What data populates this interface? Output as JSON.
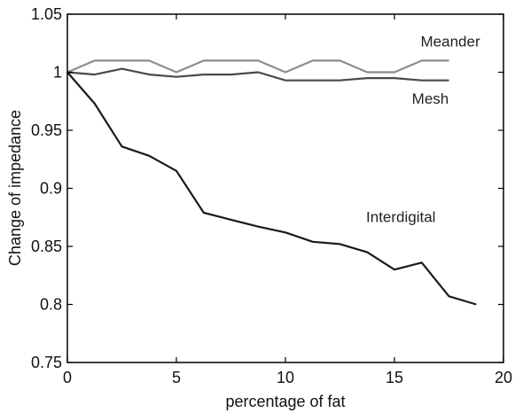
{
  "chart_data": {
    "type": "line",
    "title": "",
    "xlabel": "percentage of fat",
    "ylabel": "Change of impedance",
    "xlim": [
      0,
      20
    ],
    "ylim": [
      0.75,
      1.05
    ],
    "xticks": [
      0,
      5,
      10,
      15,
      20
    ],
    "xtick_labels": [
      "0",
      "5",
      "10",
      "15",
      "20"
    ],
    "yticks": [
      0.75,
      0.8,
      0.85,
      0.9,
      0.95,
      1,
      1.05
    ],
    "ytick_labels": [
      "0.75",
      "0.8",
      "0.85",
      "0.9",
      "0.95",
      "1",
      "1.05"
    ],
    "grid": false,
    "legend": "none",
    "series": [
      {
        "name": "Meander",
        "color": "#8c8c8c",
        "x": [
          0,
          1.25,
          2.5,
          3.75,
          5,
          6.25,
          7.5,
          8.75,
          10,
          11.25,
          12.5,
          13.75,
          15,
          16.25,
          17.5
        ],
        "y": [
          1.0,
          1.01,
          1.01,
          1.01,
          1.0,
          1.01,
          1.01,
          1.01,
          1.0,
          1.01,
          1.01,
          1.0,
          1.0,
          1.01,
          1.01
        ],
        "label_text": "Meander"
      },
      {
        "name": "Mesh",
        "color": "#4a4a4a",
        "x": [
          0,
          1.25,
          2.5,
          3.75,
          5,
          6.25,
          7.5,
          8.75,
          10,
          11.25,
          12.5,
          13.75,
          15,
          16.25,
          17.5
        ],
        "y": [
          1.0,
          0.998,
          1.003,
          0.998,
          0.996,
          0.998,
          0.998,
          1.0,
          0.993,
          0.993,
          0.993,
          0.995,
          0.995,
          0.993,
          0.993
        ],
        "label_text": "Mesh"
      },
      {
        "name": "Interdigital",
        "color": "#1a1a1a",
        "x": [
          0,
          1.25,
          2.5,
          3.75,
          5,
          6.25,
          7.5,
          8.75,
          10,
          11.25,
          12.5,
          13.75,
          15,
          16.25,
          17.5,
          18.75
        ],
        "y": [
          1.0,
          0.973,
          0.936,
          0.928,
          0.915,
          0.879,
          0.873,
          0.867,
          0.862,
          0.854,
          0.852,
          0.845,
          0.83,
          0.836,
          0.807,
          0.8
        ],
        "label_text": "Interdigital"
      }
    ]
  }
}
